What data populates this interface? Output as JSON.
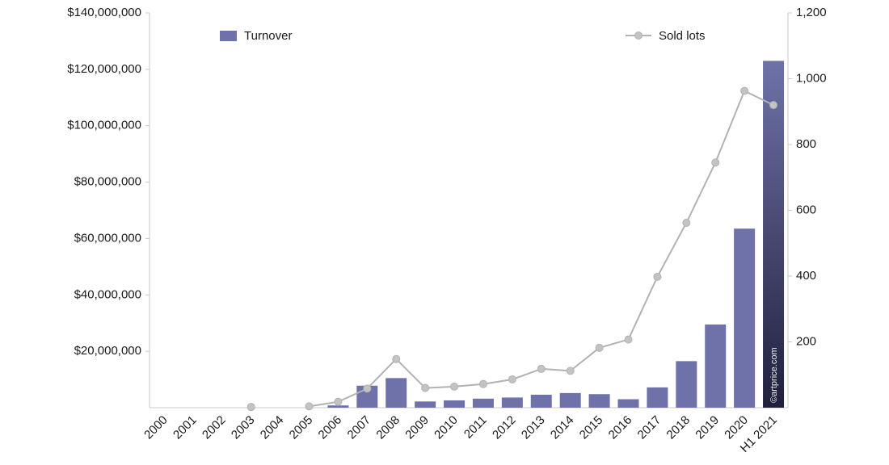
{
  "chart_data": {
    "type": "bar",
    "combo": "bar+line dual axis",
    "categories": [
      "2000",
      "2001",
      "2002",
      "2003",
      "2004",
      "2005",
      "2006",
      "2007",
      "2008",
      "2009",
      "2010",
      "2011",
      "2012",
      "2013",
      "2014",
      "2015",
      "2016",
      "2017",
      "2018",
      "2019",
      "2020",
      "H1 2021"
    ],
    "series": [
      {
        "name": "Turnover",
        "type": "bar",
        "axis": "left",
        "color": "#6e72a8",
        "last_bar_gradient_to": "#20203c",
        "values": [
          0,
          0,
          0,
          0,
          0,
          0,
          800000,
          7800000,
          10500000,
          2200000,
          2600000,
          3200000,
          3600000,
          4600000,
          5200000,
          4800000,
          3000000,
          7200000,
          16500000,
          29500000,
          63500000,
          123000000
        ]
      },
      {
        "name": "Sold lots",
        "type": "line",
        "axis": "right",
        "color": "#b2b2b2",
        "marker_color": "#c3c3c3",
        "values": [
          null,
          null,
          null,
          2,
          null,
          4,
          18,
          58,
          148,
          60,
          64,
          72,
          86,
          118,
          112,
          182,
          207,
          398,
          562,
          745,
          963,
          920
        ]
      }
    ],
    "left_axis": {
      "max": 140000000,
      "min": 0,
      "tick_values": [
        20000000,
        40000000,
        60000000,
        80000000,
        100000000,
        120000000,
        140000000
      ],
      "tick_labels": [
        "$20,000,000",
        "$40,000,000",
        "$60,000,000",
        "$80,000,000",
        "$100,000,000",
        "$120,000,000",
        "$140,000,000"
      ]
    },
    "right_axis": {
      "max": 1200,
      "min": 0,
      "tick_values": [
        200,
        400,
        600,
        800,
        1000,
        1200
      ],
      "tick_labels": [
        "200",
        "400",
        "600",
        "800",
        "1,000",
        "1,200"
      ]
    },
    "legend": [
      {
        "label": "Turnover",
        "marker": "bar-swatch"
      },
      {
        "label": "Sold lots",
        "marker": "line-dot"
      }
    ],
    "watermark": "©artprice.com",
    "grid": false,
    "legend_position": "top-inside",
    "axis_color": "#c9c9c9",
    "text_color": "#1a1a1a",
    "watermark_color": "#ffffff"
  }
}
